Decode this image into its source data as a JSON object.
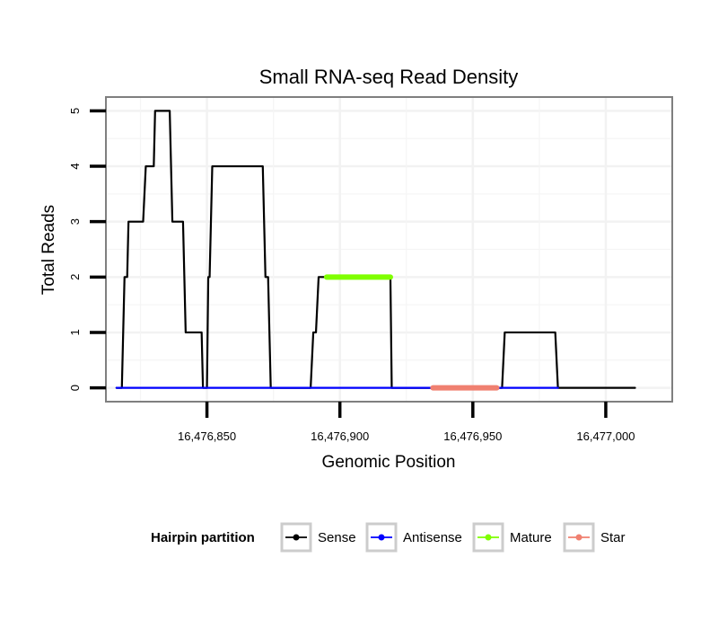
{
  "chart_data": {
    "type": "line",
    "title": "Small RNA-seq Read Density",
    "xlabel": "Genomic Position",
    "ylabel": "Total Reads",
    "xlim": [
      16476812,
      16477025
    ],
    "ylim": [
      -0.25,
      5.25
    ],
    "x_ticks": [
      16476850,
      16476900,
      16476950,
      16477000
    ],
    "x_tick_labels": [
      "16,476,850",
      "16,476,900",
      "16,476,950",
      "16,477,000"
    ],
    "y_ticks": [
      0,
      1,
      2,
      3,
      4,
      5
    ],
    "y_tick_labels": [
      "0",
      "1",
      "2",
      "3",
      "4",
      "5"
    ],
    "grid": true,
    "legend": {
      "title": "Hairpin partition",
      "position": "bottom",
      "entries": [
        "Sense",
        "Antisense",
        "Mature",
        "Star"
      ]
    },
    "series": [
      {
        "name": "Sense",
        "color": "#000000",
        "points": [
          [
            16476816,
            0
          ],
          [
            16476818,
            0
          ],
          [
            16476819,
            2
          ],
          [
            16476820,
            2
          ],
          [
            16476820.5,
            3
          ],
          [
            16476826,
            3
          ],
          [
            16476827,
            4
          ],
          [
            16476830,
            4
          ],
          [
            16476830.5,
            5
          ],
          [
            16476836,
            5
          ],
          [
            16476837,
            3
          ],
          [
            16476841,
            3
          ],
          [
            16476842,
            1
          ],
          [
            16476848,
            1
          ],
          [
            16476848.5,
            0
          ],
          [
            16476850,
            0
          ],
          [
            16476850.5,
            2
          ],
          [
            16476851,
            2
          ],
          [
            16476852,
            4
          ],
          [
            16476871,
            4
          ],
          [
            16476872,
            2
          ],
          [
            16476873,
            2
          ],
          [
            16476874,
            0
          ],
          [
            16476889,
            0
          ],
          [
            16476890,
            1
          ],
          [
            16476891,
            1
          ],
          [
            16476892,
            2
          ],
          [
            16476894,
            2
          ],
          [
            16476895,
            2
          ],
          [
            16476919,
            2
          ],
          [
            16476919.5,
            0
          ],
          [
            16476961,
            0
          ],
          [
            16476962,
            1
          ],
          [
            16476981,
            1
          ],
          [
            16476982,
            0
          ],
          [
            16477011,
            0
          ]
        ]
      },
      {
        "name": "Antisense",
        "color": "#0000ff",
        "points": [
          [
            16476816,
            0
          ],
          [
            16476982,
            0
          ]
        ]
      },
      {
        "name": "Mature",
        "color": "#7fff00",
        "points": [
          [
            16476895,
            2
          ],
          [
            16476919,
            2
          ]
        ]
      },
      {
        "name": "Star",
        "color": "#f08070",
        "points": [
          [
            16476935,
            0
          ],
          [
            16476959,
            0
          ]
        ]
      }
    ]
  }
}
